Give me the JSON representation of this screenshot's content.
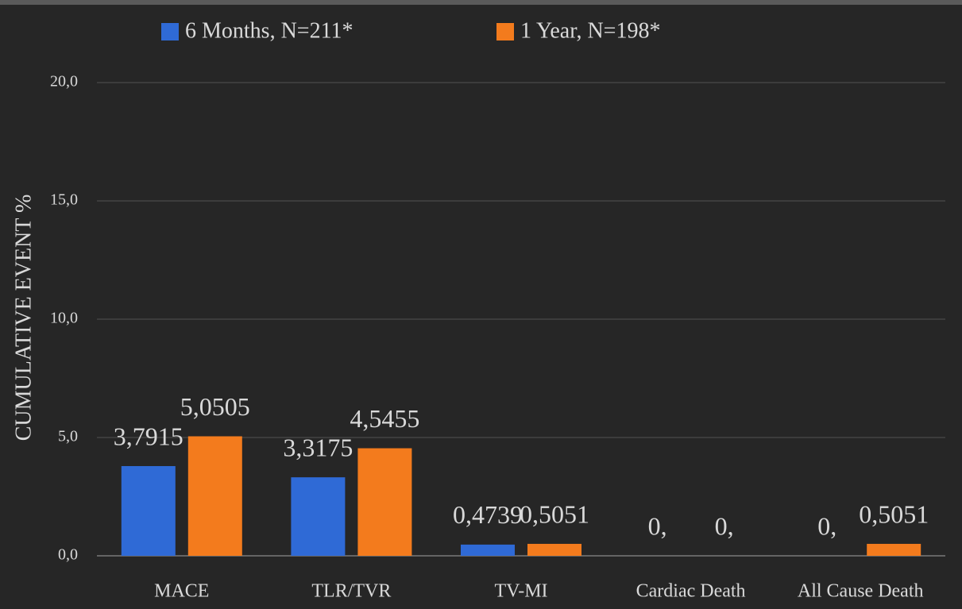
{
  "chart_data": {
    "type": "bar",
    "y_label": "CUMULATIVE EVENT %",
    "categories": [
      "MACE",
      "TLR/TVR",
      "TV-MI",
      "Cardiac Death",
      "All Cause Death"
    ],
    "series": [
      {
        "name": "6 Months, N=211*",
        "color": "#2f6ad6",
        "values": [
          3.7915,
          3.3175,
          0.4739,
          0,
          0
        ],
        "value_labels": [
          "3,7915",
          "3,3175",
          "0,4739",
          "0,",
          "0,"
        ]
      },
      {
        "name": "1 Year, N=198*",
        "color": "#f37b1d",
        "values": [
          5.0505,
          4.5455,
          0.5051,
          0,
          0.5051
        ],
        "value_labels": [
          "5,0505",
          "4,5455",
          "0,5051",
          "0,",
          "0,5051"
        ]
      }
    ],
    "ylim": [
      0,
      20
    ],
    "yticks": [
      {
        "value": 0,
        "label": "0,0"
      },
      {
        "value": 5,
        "label": "5,0"
      },
      {
        "value": 10,
        "label": "10,0"
      },
      {
        "value": 15,
        "label": "15,0"
      },
      {
        "value": 20,
        "label": "20,0"
      }
    ],
    "grid": true,
    "legend": "top"
  }
}
